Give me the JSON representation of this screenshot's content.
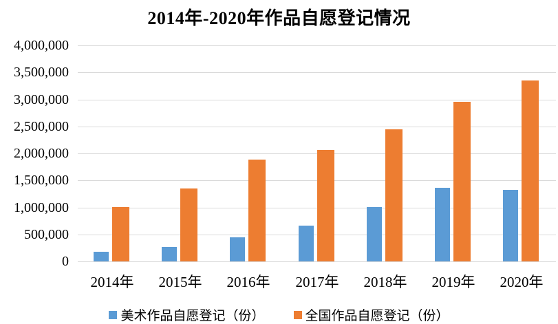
{
  "chart_data": {
    "type": "bar",
    "title": "2014年-2020年作品自愿登记情况",
    "categories": [
      "2014年",
      "2015年",
      "2016年",
      "2017年",
      "2018年",
      "2019年",
      "2020年"
    ],
    "series": [
      {
        "name": "美术作品自愿登记（份）",
        "color": "#5B9BD5",
        "values": [
          180000,
          270000,
          440000,
          660000,
          1010000,
          1360000,
          1320000
        ]
      },
      {
        "name": "全国作品自愿登记（份）",
        "color": "#ED7D31",
        "values": [
          1000000,
          1350000,
          1890000,
          2060000,
          2440000,
          2950000,
          3350000
        ]
      }
    ],
    "ylim": [
      0,
      4000000
    ],
    "ytick_step": 500000,
    "ytick_labels": [
      "0",
      "500,000",
      "1,000,000",
      "1,500,000",
      "2,000,000",
      "2,500,000",
      "3,000,000",
      "3,500,000",
      "4,000,000"
    ],
    "grid": true,
    "legend_position": "bottom",
    "gridline_color": "#d9d9d9",
    "text_color": "#000000",
    "background": "#ffffff"
  }
}
